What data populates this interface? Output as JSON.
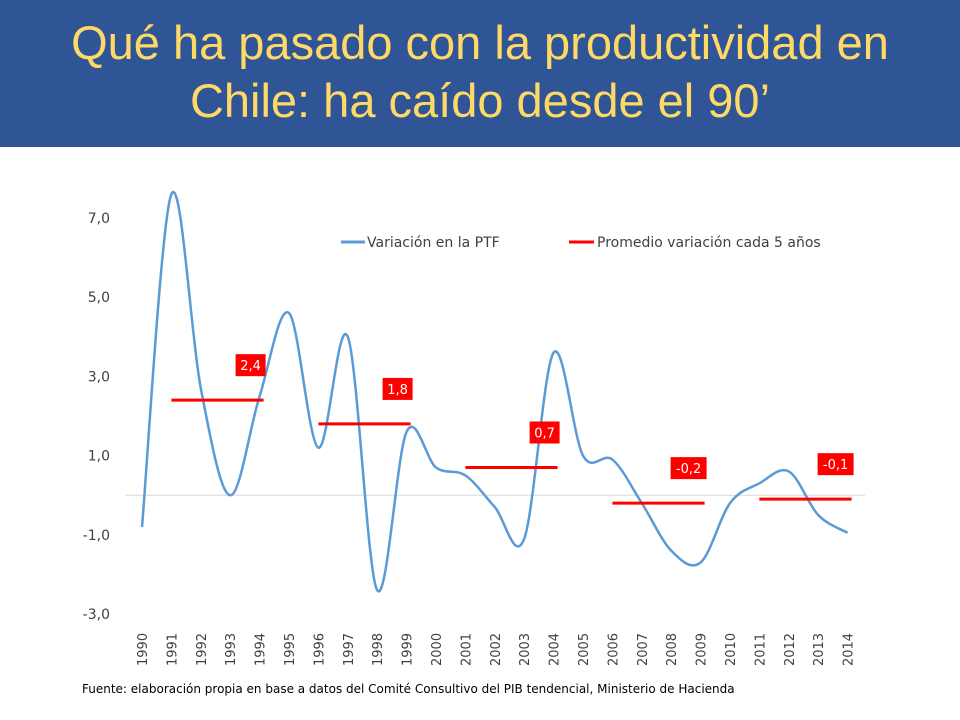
{
  "slide": {
    "title_line1": "Qué ha pasado con la productividad en",
    "title_line2": "Chile: ha caído desde el 90’",
    "footnote": "Fuente: elaboración propia en base a datos del Comité Consultivo del PIB tendencial, Ministerio de Hacienda"
  },
  "colors": {
    "header_bg": "#2f5597",
    "title_text": "#ffd966",
    "series_ptf": "#5b9bd5",
    "series_avg": "#ff0000"
  },
  "chart_data": {
    "type": "line",
    "ylim": [
      -3.0,
      7.0
    ],
    "yticks": [
      "7,0",
      "5,0",
      "3,0",
      "1,0",
      "-1,0",
      "-3,0"
    ],
    "ytick_values": [
      7.0,
      5.0,
      3.0,
      1.0,
      -1.0,
      -3.0
    ],
    "categories": [
      "1990",
      "1991",
      "1992",
      "1993",
      "1994",
      "1995",
      "1996",
      "1997",
      "1998",
      "1999",
      "2000",
      "2001",
      "2002",
      "2003",
      "2004",
      "2005",
      "2006",
      "2007",
      "2008",
      "2009",
      "2010",
      "2011",
      "2012",
      "2013",
      "2014"
    ],
    "legend_position": "top",
    "series": [
      {
        "name": "Variación en la PTF",
        "type": "line",
        "values": [
          -0.8,
          7.6,
          2.7,
          0.0,
          2.5,
          4.6,
          1.2,
          4.0,
          -2.4,
          1.6,
          0.7,
          0.5,
          -0.3,
          -1.1,
          3.6,
          1.0,
          0.9,
          -0.2,
          -1.4,
          -1.7,
          -0.2,
          0.3,
          0.6,
          -0.5,
          -0.95
        ]
      },
      {
        "name": "Promedio variación cada 5 años",
        "type": "segments",
        "segments": [
          {
            "x_start": "1991",
            "x_end": "1994",
            "value": 2.4,
            "label": "2,4"
          },
          {
            "x_start": "1996",
            "x_end": "1999",
            "value": 1.8,
            "label": "1,8"
          },
          {
            "x_start": "2001",
            "x_end": "2004",
            "value": 0.7,
            "label": "0,7"
          },
          {
            "x_start": "2006",
            "x_end": "2009",
            "value": -0.2,
            "label": "-0,2"
          },
          {
            "x_start": "2011",
            "x_end": "2014",
            "value": -0.1,
            "label": "-0,1"
          }
        ]
      }
    ]
  }
}
